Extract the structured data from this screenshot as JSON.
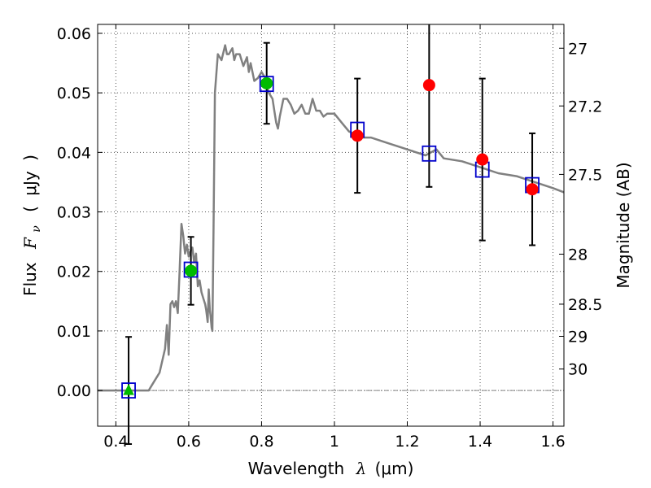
{
  "chart_data": {
    "type": "scatter",
    "xlabel": "Wavelength",
    "xlabel_symbol": "λ",
    "xlabel_unit": "(μm)",
    "ylabel": "Flux",
    "ylabel_symbol": "F",
    "ylabel_subscript": "ν",
    "ylabel_unit_open": "(",
    "ylabel_unit": "μJy",
    "ylabel_unit_close": ")",
    "y2label": "Magnitude (AB)",
    "xlim": [
      0.35,
      1.63
    ],
    "ylim": [
      -0.006,
      0.0615
    ],
    "grid": true,
    "x_ticks": [
      0.4,
      0.6,
      0.8,
      1.0,
      1.2,
      1.4,
      1.6
    ],
    "x_tick_labels": [
      "0.4",
      "0.6",
      "0.8",
      "1",
      "1.2",
      "1.4",
      "1.6"
    ],
    "y_ticks": [
      0.0,
      0.01,
      0.02,
      0.03,
      0.04,
      0.05,
      0.06
    ],
    "y_tick_labels": [
      "0.00",
      "0.01",
      "0.02",
      "0.03",
      "0.04",
      "0.05",
      "0.06"
    ],
    "y2_ticks": [
      {
        "label": "27",
        "flux": 0.0575
      },
      {
        "label": "27.2",
        "flux": 0.0478
      },
      {
        "label": "27.5",
        "flux": 0.0363
      },
      {
        "label": "28",
        "flux": 0.0229
      },
      {
        "label": "28.5",
        "flux": 0.0145
      },
      {
        "label": "29",
        "flux": 0.0091
      },
      {
        "label": "30",
        "flux": 0.0036
      }
    ],
    "zero_line": {
      "y": 0.0,
      "color": "#888888"
    },
    "sed_model": {
      "color": "#808080",
      "x": [
        0.35,
        0.49,
        0.5,
        0.52,
        0.535,
        0.54,
        0.545,
        0.55,
        0.555,
        0.56,
        0.565,
        0.57,
        0.575,
        0.58,
        0.585,
        0.59,
        0.595,
        0.6,
        0.605,
        0.61,
        0.615,
        0.62,
        0.625,
        0.63,
        0.635,
        0.64,
        0.645,
        0.648,
        0.652,
        0.655,
        0.658,
        0.66,
        0.663,
        0.665,
        0.668,
        0.672,
        0.68,
        0.69,
        0.7,
        0.705,
        0.71,
        0.72,
        0.725,
        0.73,
        0.74,
        0.745,
        0.75,
        0.76,
        0.765,
        0.77,
        0.78,
        0.79,
        0.8,
        0.81,
        0.815,
        0.82,
        0.83,
        0.835,
        0.84,
        0.845,
        0.85,
        0.86,
        0.87,
        0.88,
        0.89,
        0.9,
        0.91,
        0.92,
        0.93,
        0.94,
        0.95,
        0.96,
        0.97,
        0.98,
        0.99,
        1.0,
        1.02,
        1.04,
        1.06,
        1.08,
        1.1,
        1.15,
        1.2,
        1.25,
        1.28,
        1.3,
        1.35,
        1.4,
        1.45,
        1.5,
        1.55,
        1.6,
        1.63
      ],
      "y": [
        0.0,
        0.0,
        0.001,
        0.003,
        0.007,
        0.011,
        0.006,
        0.0145,
        0.015,
        0.014,
        0.015,
        0.013,
        0.02,
        0.028,
        0.026,
        0.023,
        0.0245,
        0.0225,
        0.0235,
        0.024,
        0.0215,
        0.023,
        0.0175,
        0.0185,
        0.0165,
        0.0155,
        0.0145,
        0.0135,
        0.0115,
        0.017,
        0.0135,
        0.0125,
        0.0105,
        0.01,
        0.027,
        0.05,
        0.0565,
        0.0555,
        0.058,
        0.0565,
        0.0565,
        0.0575,
        0.0555,
        0.0565,
        0.0565,
        0.0555,
        0.0545,
        0.056,
        0.0535,
        0.055,
        0.052,
        0.0525,
        0.0535,
        0.0525,
        0.051,
        0.05,
        0.049,
        0.047,
        0.045,
        0.044,
        0.046,
        0.049,
        0.049,
        0.048,
        0.0465,
        0.047,
        0.048,
        0.0465,
        0.0465,
        0.049,
        0.047,
        0.047,
        0.046,
        0.0465,
        0.0465,
        0.0465,
        0.045,
        0.0435,
        0.043,
        0.0425,
        0.0425,
        0.0415,
        0.0405,
        0.0395,
        0.0405,
        0.039,
        0.0385,
        0.0375,
        0.0365,
        0.036,
        0.035,
        0.034,
        0.0333
      ]
    },
    "model_photometry": {
      "marker": "open-square",
      "color": "#0000cc",
      "x": [
        0.435,
        0.606,
        0.814,
        1.063,
        1.26,
        1.406,
        1.543
      ],
      "y": [
        0.0,
        0.0203,
        0.0515,
        0.0438,
        0.0398,
        0.0371,
        0.0345
      ]
    },
    "detections_optical": {
      "marker": "filled-circle",
      "color": "#00bb00",
      "x": [
        0.606,
        0.814
      ],
      "y": [
        0.0201,
        0.0516
      ],
      "yerr": [
        0.0057,
        0.0068
      ]
    },
    "upper_limit_optical": {
      "marker": "filled-triangle",
      "color": "#00bb00",
      "x": [
        0.435
      ],
      "y": [
        0.0
      ],
      "yerr": [
        0.009
      ]
    },
    "detections_nir": {
      "marker": "filled-circle",
      "color": "#ff0000",
      "x": [
        1.063,
        1.26,
        1.406,
        1.543
      ],
      "y": [
        0.0428,
        0.0513,
        0.0388,
        0.0338
      ],
      "yerr": [
        0.0096,
        0.0171,
        0.0136,
        0.0094
      ]
    },
    "errorbar_color": "#000000"
  }
}
